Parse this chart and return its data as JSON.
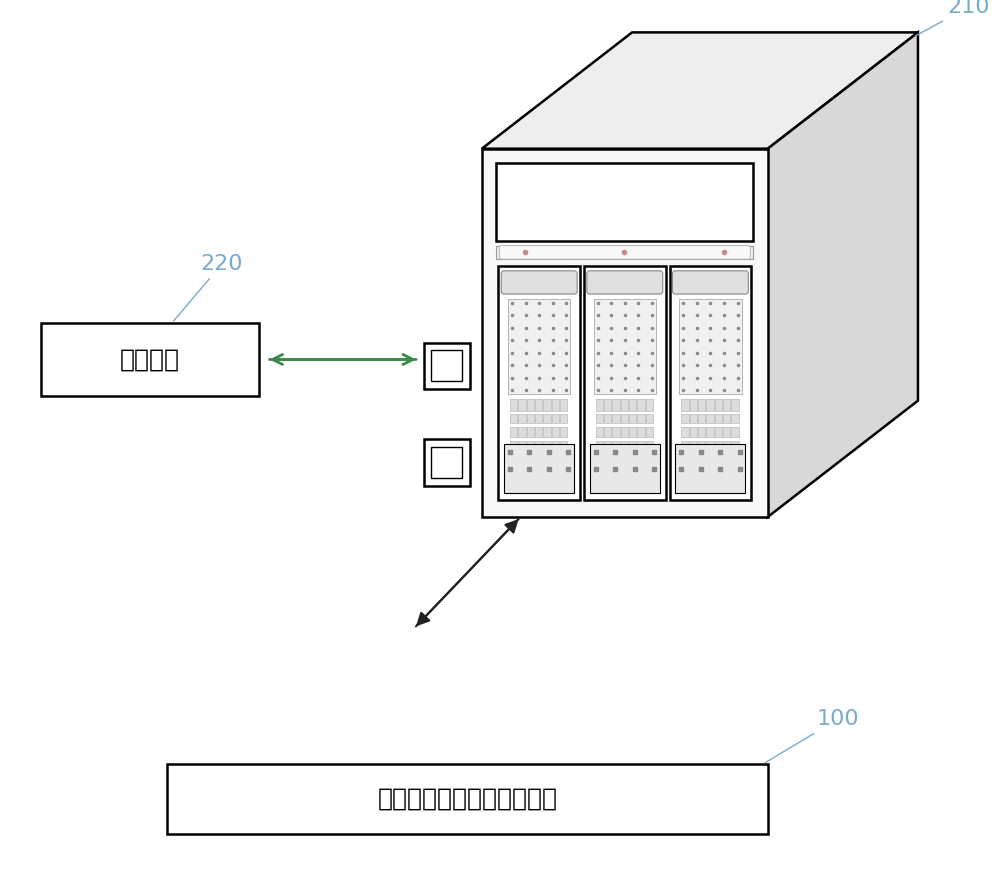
{
  "bg_color": "#ffffff",
  "label_210": "210",
  "label_220": "220",
  "label_100": "100",
  "text_monitor": "监控装置",
  "text_recorder": "具有通信模块的行车记录件",
  "line_color": "#000000",
  "label_color": "#7aaacc",
  "arrow_green": "#3a8a4a",
  "arrow_dark": "#222222",
  "face_front": "#f8f8f8",
  "face_top": "#eeeeee",
  "face_right": "#d8d8d8"
}
